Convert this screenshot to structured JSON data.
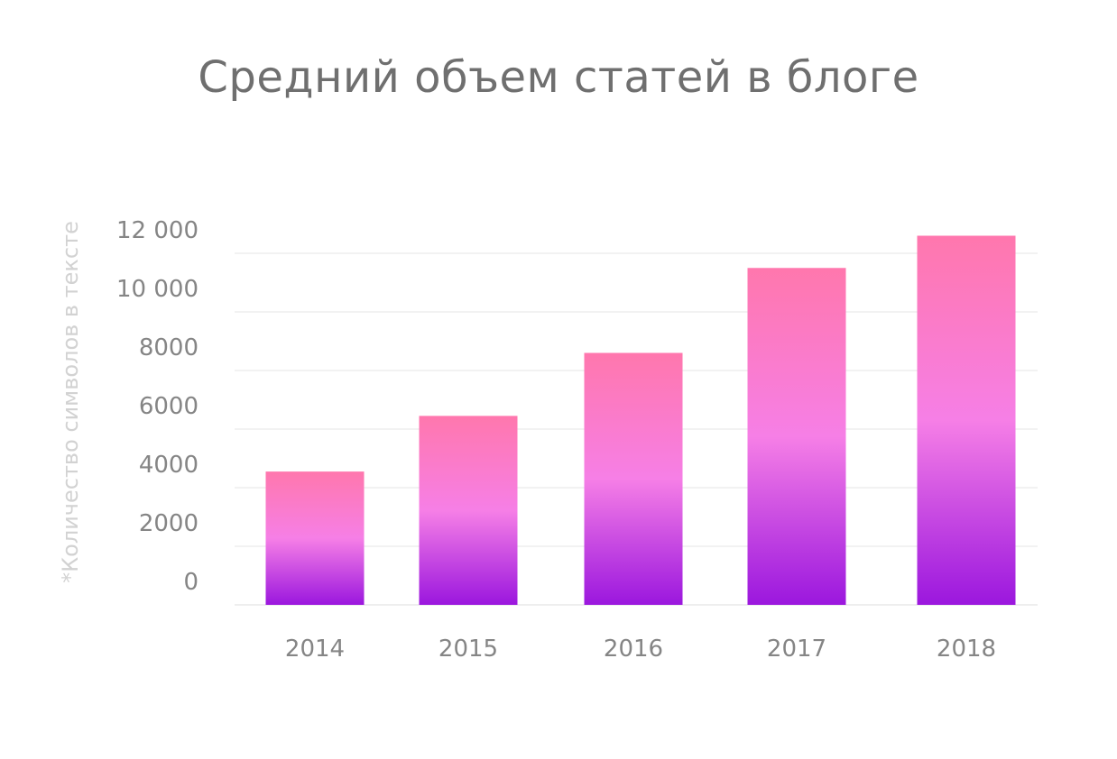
{
  "chart_data": {
    "type": "bar",
    "title": "Средний объем статей в блоге",
    "subtitle": "",
    "xlabel": "",
    "ylabel": "*Количество символов в тексте",
    "categories": [
      "2014",
      "2015",
      "2016",
      "2017",
      "2018"
    ],
    "values": [
      4550,
      6450,
      8600,
      11500,
      12600
    ],
    "ylim": [
      0,
      12000
    ],
    "yticks": [
      0,
      2000,
      4000,
      6000,
      8000,
      10000,
      12000
    ],
    "ytick_labels": [
      "0",
      "2000",
      "4000",
      "6000",
      "8000",
      "10 000",
      "12 000"
    ],
    "grid": true,
    "legend": "none",
    "colors": {
      "bar_top": "#ff77ad",
      "bar_mid": "#f67fe6",
      "bar_bottom": "#9b17de",
      "grid": "#eeeeee",
      "text": "#858585",
      "title": "#6f6f6f",
      "ylabel": "#d2d2d2"
    }
  }
}
